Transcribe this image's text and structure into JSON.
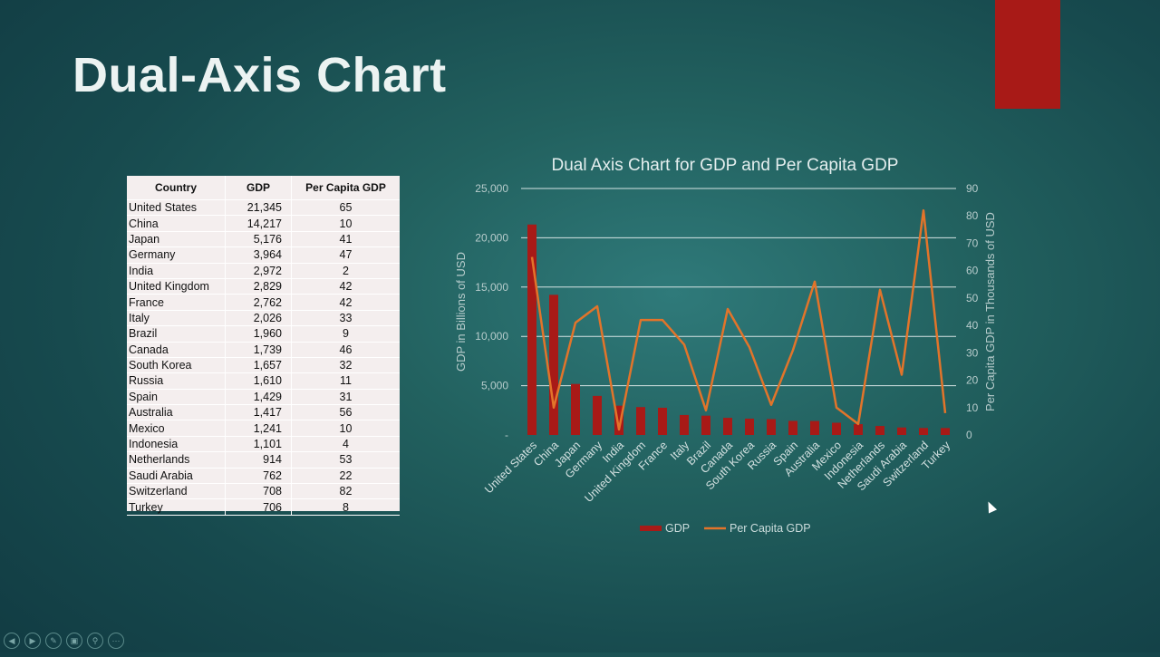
{
  "slide": {
    "title": "Dual-Axis Chart",
    "accent_color": "#a81a17"
  },
  "table": {
    "headers": [
      "Country",
      "GDP",
      "Per Capita GDP"
    ],
    "rows": [
      [
        "United States",
        "21,345",
        "65"
      ],
      [
        "China",
        "14,217",
        "10"
      ],
      [
        "Japan",
        "5,176",
        "41"
      ],
      [
        "Germany",
        "3,964",
        "47"
      ],
      [
        "India",
        "2,972",
        "2"
      ],
      [
        "United Kingdom",
        "2,829",
        "42"
      ],
      [
        "France",
        "2,762",
        "42"
      ],
      [
        "Italy",
        "2,026",
        "33"
      ],
      [
        "Brazil",
        "1,960",
        "9"
      ],
      [
        "Canada",
        "1,739",
        "46"
      ],
      [
        "South Korea",
        "1,657",
        "32"
      ],
      [
        "Russia",
        "1,610",
        "11"
      ],
      [
        "Spain",
        "1,429",
        "31"
      ],
      [
        "Australia",
        "1,417",
        "56"
      ],
      [
        "Mexico",
        "1,241",
        "10"
      ],
      [
        "Indonesia",
        "1,101",
        "4"
      ],
      [
        "Netherlands",
        "914",
        "53"
      ],
      [
        "Saudi Arabia",
        "762",
        "22"
      ],
      [
        "Switzerland",
        "708",
        "82"
      ],
      [
        "Turkey",
        "706",
        "8"
      ]
    ]
  },
  "chart_data": {
    "type": "bar+line",
    "title": "Dual Axis Chart for GDP and Per Capita GDP",
    "ylabel": "GDP in Billions of USD",
    "y2label": "Per Capita GDP in Thousands of USD",
    "ylim": [
      0,
      25000
    ],
    "y2lim": [
      0,
      90
    ],
    "y_ticks": [
      "-",
      "5,000",
      "10,000",
      "15,000",
      "20,000",
      "25,000"
    ],
    "y2_ticks": [
      "0",
      "10",
      "20",
      "30",
      "40",
      "50",
      "60",
      "70",
      "80",
      "90"
    ],
    "grid": true,
    "legend_position": "bottom",
    "categories": [
      "United States",
      "China",
      "Japan",
      "Germany",
      "India",
      "United Kingdom",
      "France",
      "Italy",
      "Brazil",
      "Canada",
      "South Korea",
      "Russia",
      "Spain",
      "Australia",
      "Mexico",
      "Indonesia",
      "Netherlands",
      "Saudi Arabia",
      "Switzerland",
      "Turkey"
    ],
    "series": [
      {
        "name": "GDP",
        "type": "bar",
        "axis": "left",
        "color": "#a81a17",
        "values": [
          21345,
          14217,
          5176,
          3964,
          2972,
          2829,
          2762,
          2026,
          1960,
          1739,
          1657,
          1610,
          1429,
          1417,
          1241,
          1101,
          914,
          762,
          708,
          706
        ]
      },
      {
        "name": "Per Capita GDP",
        "type": "line",
        "axis": "right",
        "color": "#e2742a",
        "values": [
          65,
          10,
          41,
          47,
          2,
          42,
          42,
          33,
          9,
          46,
          32,
          11,
          31,
          56,
          10,
          4,
          53,
          22,
          82,
          8
        ]
      }
    ]
  },
  "nav": {
    "icons": [
      "previous-icon",
      "next-icon",
      "pen-icon",
      "slides-icon",
      "zoom-icon",
      "more-icon"
    ],
    "glyphs": [
      "◀",
      "▶",
      "✎",
      "▣",
      "⚲",
      "···"
    ]
  }
}
